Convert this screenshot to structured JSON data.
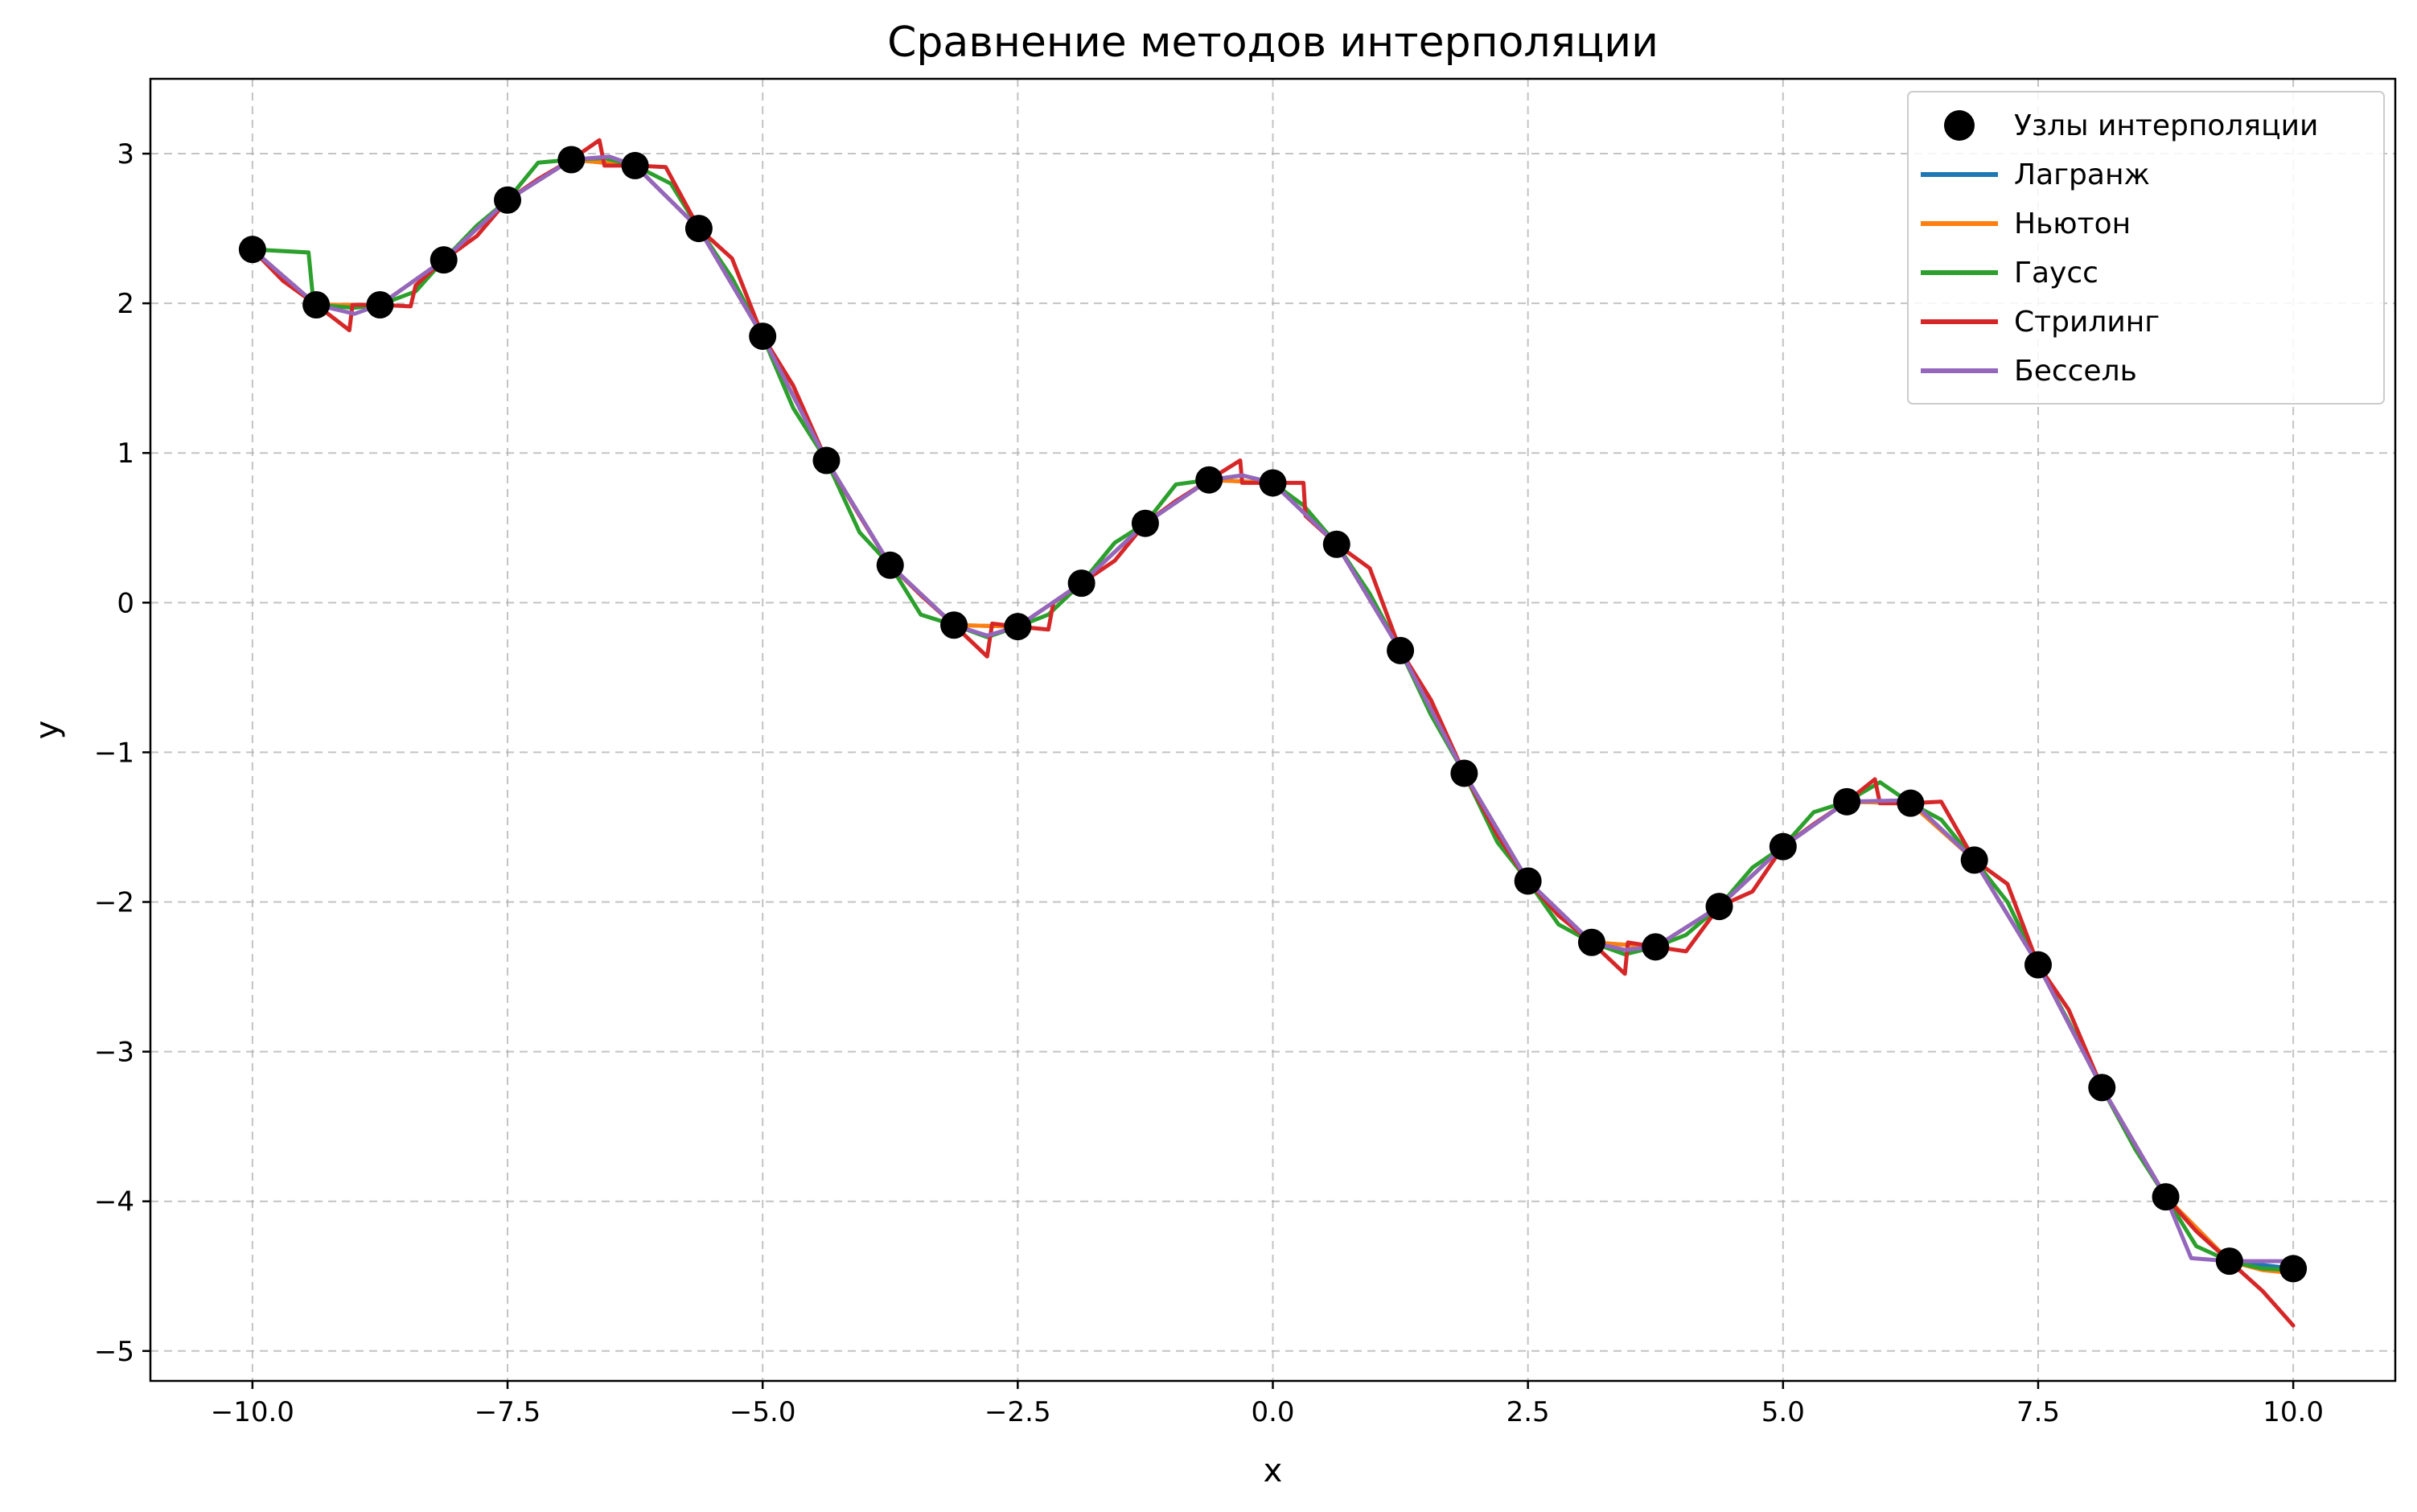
{
  "chart_data": {
    "type": "line",
    "title": "Сравнение методов интерполяции",
    "xlabel": "x",
    "ylabel": "y",
    "xlim": [
      -11,
      11
    ],
    "ylim": [
      -5.2,
      3.5
    ],
    "grid": true,
    "legend_position": "top-right",
    "xticks": [
      -10,
      -7.5,
      -5,
      -2.5,
      0,
      2.5,
      5,
      7.5,
      10
    ],
    "xtick_labels": [
      "−10.0",
      "−7.5",
      "−5.0",
      "−2.5",
      "0.0",
      "2.5",
      "5.0",
      "7.5",
      "10.0"
    ],
    "yticks": [
      -5,
      -4,
      -3,
      -2,
      -1,
      0,
      1,
      2,
      3
    ],
    "ytick_labels": [
      "−5",
      "−4",
      "−3",
      "−2",
      "−1",
      "0",
      "1",
      "2",
      "3"
    ],
    "nodes": {
      "name": "Узлы интерполяции",
      "color": "#000000",
      "x": [
        -10,
        -9.375,
        -8.75,
        -8.125,
        -7.5,
        -6.875,
        -6.25,
        -5.625,
        -5,
        -4.375,
        -3.75,
        -3.125,
        -2.5,
        -1.875,
        -1.25,
        -0.625,
        0,
        0.625,
        1.25,
        1.875,
        2.5,
        3.125,
        3.75,
        4.375,
        5,
        5.625,
        6.25,
        6.875,
        7.5,
        8.125,
        8.75,
        9.375,
        10
      ],
      "y": [
        2.36,
        1.99,
        1.99,
        2.29,
        2.69,
        2.96,
        2.92,
        2.5,
        1.78,
        0.95,
        0.25,
        -0.15,
        -0.16,
        0.13,
        0.53,
        0.82,
        0.8,
        0.39,
        -0.32,
        -1.14,
        -1.86,
        -2.27,
        -2.3,
        -2.03,
        -1.63,
        -1.33,
        -1.34,
        -1.72,
        -2.42,
        -3.24,
        -3.97,
        -4.4,
        -4.45
      ]
    },
    "series": [
      {
        "name": "Лагранж",
        "color": "#1f77b4",
        "x": [
          -10,
          -9.375,
          -8.75,
          -8.125,
          -7.5,
          -6.875,
          -6.25,
          -5.625,
          -5,
          -4.375,
          -3.75,
          -3.125,
          -2.5,
          -1.875,
          -1.25,
          -0.625,
          0,
          0.625,
          1.25,
          1.875,
          2.5,
          3.125,
          3.75,
          4.375,
          5,
          5.625,
          6.25,
          6.875,
          7.5,
          8.125,
          8.75,
          9.375,
          10
        ],
        "y": [
          2.36,
          1.99,
          1.99,
          2.29,
          2.69,
          2.96,
          2.92,
          2.5,
          1.78,
          0.95,
          0.25,
          -0.15,
          -0.16,
          0.13,
          0.53,
          0.82,
          0.8,
          0.39,
          -0.32,
          -1.14,
          -1.86,
          -2.27,
          -2.3,
          -2.03,
          -1.63,
          -1.33,
          -1.34,
          -1.72,
          -2.42,
          -3.24,
          -3.97,
          -4.4,
          -4.45
        ]
      },
      {
        "name": "Ньютон",
        "color": "#ff7f0e",
        "x": [
          -10,
          -9.375,
          -8.75,
          -8.125,
          -7.5,
          -6.875,
          -6.25,
          -5.625,
          -5,
          -4.375,
          -3.75,
          -3.125,
          -2.5,
          -1.875,
          -1.25,
          -0.625,
          0,
          0.625,
          1.25,
          1.875,
          2.5,
          3.125,
          3.75,
          4.375,
          5,
          5.625,
          6.25,
          6.875,
          7.5,
          8.125,
          8.75,
          9.375,
          9.7,
          10
        ],
        "y": [
          2.36,
          1.99,
          1.99,
          2.29,
          2.69,
          2.96,
          2.92,
          2.5,
          1.78,
          0.95,
          0.25,
          -0.15,
          -0.16,
          0.13,
          0.53,
          0.82,
          0.8,
          0.39,
          -0.32,
          -1.14,
          -1.86,
          -2.27,
          -2.3,
          -2.03,
          -1.63,
          -1.33,
          -1.34,
          -1.72,
          -2.42,
          -3.24,
          -3.97,
          -4.4,
          -4.46,
          -4.48
        ]
      },
      {
        "name": "Гаусс",
        "color": "#2ca02c",
        "x": [
          -10,
          -9.45,
          -9.4,
          -9.0,
          -8.75,
          -8.4,
          -8.125,
          -7.8,
          -7.5,
          -7.2,
          -6.875,
          -6.55,
          -6.25,
          -5.9,
          -5.625,
          -5.3,
          -5.0,
          -4.7,
          -4.375,
          -4.05,
          -3.75,
          -3.45,
          -3.125,
          -2.8,
          -2.5,
          -2.2,
          -1.875,
          -1.55,
          -1.25,
          -0.95,
          -0.625,
          -0.3,
          0,
          0.3,
          0.625,
          0.95,
          1.25,
          1.55,
          1.875,
          2.2,
          2.5,
          2.8,
          3.125,
          3.45,
          3.75,
          4.05,
          4.375,
          4.7,
          5.0,
          5.3,
          5.625,
          5.95,
          6.25,
          6.55,
          6.875,
          7.2,
          7.5,
          7.8,
          8.125,
          8.45,
          8.75,
          9.05,
          9.375,
          9.7,
          10
        ],
        "y": [
          2.36,
          2.34,
          1.99,
          1.97,
          1.99,
          2.08,
          2.29,
          2.52,
          2.69,
          2.94,
          2.96,
          2.97,
          2.92,
          2.8,
          2.5,
          2.17,
          1.78,
          1.3,
          0.95,
          0.47,
          0.25,
          -0.08,
          -0.15,
          -0.23,
          -0.16,
          -0.08,
          0.13,
          0.4,
          0.53,
          0.79,
          0.82,
          0.85,
          0.8,
          0.65,
          0.39,
          0.06,
          -0.32,
          -0.75,
          -1.14,
          -1.6,
          -1.86,
          -2.15,
          -2.27,
          -2.35,
          -2.3,
          -2.22,
          -2.03,
          -1.77,
          -1.63,
          -1.4,
          -1.33,
          -1.2,
          -1.34,
          -1.45,
          -1.72,
          -2.0,
          -2.42,
          -2.8,
          -3.24,
          -3.65,
          -3.97,
          -4.3,
          -4.4,
          -4.45,
          -4.46
        ]
      },
      {
        "name": "Стрилинг",
        "color": "#d62728",
        "x": [
          -10,
          -9.7,
          -9.375,
          -9.05,
          -9.02,
          -8.75,
          -8.45,
          -8.4,
          -8.125,
          -7.8,
          -7.5,
          -7.2,
          -6.875,
          -6.6,
          -6.55,
          -6.25,
          -5.95,
          -5.625,
          -5.3,
          -5.0,
          -4.7,
          -4.375,
          -4.05,
          -3.75,
          -3.45,
          -3.125,
          -2.8,
          -2.75,
          -2.5,
          -2.2,
          -2.15,
          -1.875,
          -1.55,
          -1.25,
          -0.95,
          -0.625,
          -0.32,
          -0.3,
          0,
          0.3,
          0.32,
          0.625,
          0.95,
          1.25,
          1.55,
          1.875,
          2.2,
          2.5,
          2.8,
          3.125,
          3.45,
          3.48,
          3.75,
          4.05,
          4.375,
          4.7,
          5.0,
          5.3,
          5.625,
          5.9,
          5.95,
          6.25,
          6.55,
          6.875,
          7.2,
          7.5,
          7.8,
          8.125,
          8.45,
          8.75,
          9.05,
          9.375,
          9.7,
          10
        ],
        "y": [
          2.36,
          2.15,
          1.99,
          1.82,
          1.99,
          1.99,
          1.98,
          2.12,
          2.29,
          2.45,
          2.69,
          2.83,
          2.96,
          3.09,
          2.92,
          2.92,
          2.91,
          2.5,
          2.3,
          1.78,
          1.45,
          0.95,
          0.58,
          0.25,
          0.05,
          -0.15,
          -0.36,
          -0.14,
          -0.16,
          -0.18,
          0.0,
          0.13,
          0.28,
          0.53,
          0.68,
          0.82,
          0.95,
          0.8,
          0.8,
          0.8,
          0.58,
          0.39,
          0.23,
          -0.32,
          -0.65,
          -1.14,
          -1.55,
          -1.86,
          -2.09,
          -2.27,
          -2.48,
          -2.27,
          -2.3,
          -2.33,
          -2.03,
          -1.93,
          -1.63,
          -1.48,
          -1.33,
          -1.18,
          -1.34,
          -1.34,
          -1.33,
          -1.72,
          -1.88,
          -2.42,
          -2.72,
          -3.24,
          -3.62,
          -3.97,
          -4.2,
          -4.4,
          -4.6,
          -4.83
        ]
      },
      {
        "name": "Бессель",
        "color": "#9467bd",
        "x": [
          -10,
          -9.375,
          -9.0,
          -8.75,
          -8.125,
          -7.5,
          -6.875,
          -6.5,
          -6.25,
          -5.625,
          -5,
          -4.375,
          -3.75,
          -3.125,
          -2.8,
          -2.5,
          -1.875,
          -1.25,
          -0.625,
          -0.3,
          0,
          0.625,
          1.25,
          1.875,
          2.5,
          3.125,
          3.45,
          3.75,
          4.375,
          5,
          5.625,
          6.25,
          6.875,
          7.5,
          8.125,
          8.75,
          9.0,
          9.375,
          10
        ],
        "y": [
          2.36,
          1.99,
          1.93,
          1.99,
          2.29,
          2.69,
          2.96,
          2.98,
          2.92,
          2.5,
          1.78,
          0.95,
          0.25,
          -0.15,
          -0.22,
          -0.16,
          0.13,
          0.53,
          0.82,
          0.85,
          0.8,
          0.39,
          -0.32,
          -1.14,
          -1.86,
          -2.27,
          -2.32,
          -2.3,
          -2.03,
          -1.63,
          -1.33,
          -1.32,
          -1.72,
          -2.42,
          -3.24,
          -3.97,
          -4.38,
          -4.4,
          -4.4
        ]
      }
    ]
  }
}
